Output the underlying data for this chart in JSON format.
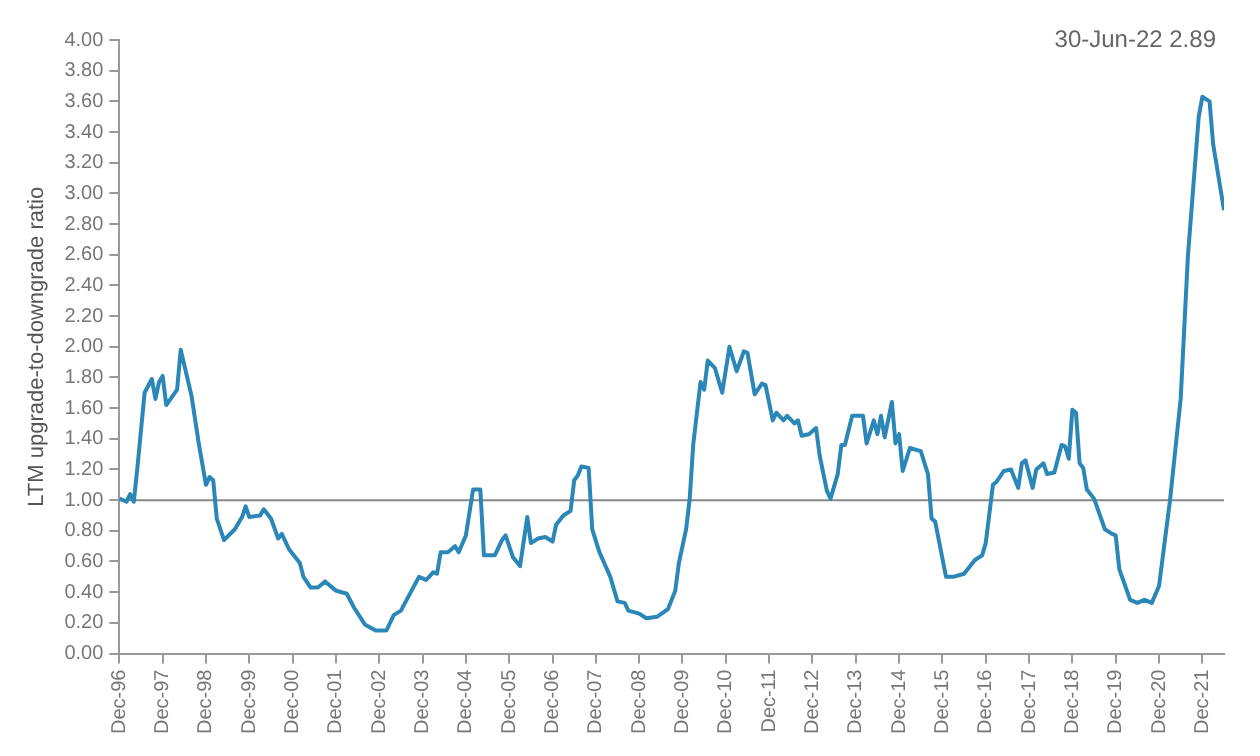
{
  "chart_data": {
    "type": "line",
    "ylabel": "LTM upgrade-to-downgrade ratio",
    "annotations": [
      "30-Jun-22 2.89"
    ],
    "x": [
      "1996-12",
      "1997-02",
      "1997-03",
      "1997-04",
      "1997-05",
      "1997-07",
      "1997-09",
      "1997-10",
      "1997-11",
      "1997-12",
      "1998-01",
      "1998-04",
      "1998-05",
      "1998-08",
      "1998-10",
      "1998-12",
      "1999-01",
      "1999-02",
      "1999-03",
      "1999-05",
      "1999-08",
      "1999-10",
      "1999-11",
      "1999-12",
      "2000-03",
      "2000-04",
      "2000-06",
      "2000-08",
      "2000-09",
      "2000-11",
      "2001-02",
      "2001-03",
      "2001-05",
      "2001-07",
      "2001-09",
      "2001-12",
      "2002-03",
      "2002-05",
      "2002-08",
      "2002-11",
      "2003-02",
      "2003-04",
      "2003-06",
      "2003-11",
      "2004-01",
      "2004-03",
      "2004-04",
      "2004-05",
      "2004-07",
      "2004-09",
      "2004-10",
      "2004-12",
      "2005-02",
      "2005-04",
      "2005-05",
      "2005-08",
      "2005-10",
      "2005-11",
      "2006-01",
      "2006-03",
      "2006-05",
      "2006-06",
      "2006-08",
      "2006-10",
      "2006-12",
      "2007-01",
      "2007-03",
      "2007-05",
      "2007-06",
      "2007-07",
      "2007-08",
      "2007-10",
      "2007-11",
      "2008-01",
      "2008-04",
      "2008-06",
      "2008-08",
      "2008-09",
      "2008-12",
      "2009-02",
      "2009-05",
      "2009-08",
      "2009-10",
      "2009-11",
      "2010-01",
      "2010-02",
      "2010-03",
      "2010-04",
      "2010-05",
      "2010-06",
      "2010-07",
      "2010-09",
      "2010-11",
      "2011-01",
      "2011-03",
      "2011-05",
      "2011-06",
      "2011-08",
      "2011-10",
      "2011-11",
      "2012-01",
      "2012-02",
      "2012-04",
      "2012-05",
      "2012-07",
      "2012-08",
      "2012-09",
      "2012-11",
      "2013-01",
      "2013-02",
      "2013-04",
      "2013-05",
      "2013-07",
      "2013-08",
      "2013-09",
      "2013-11",
      "2014-02",
      "2014-03",
      "2014-05",
      "2014-06",
      "2014-07",
      "2014-08",
      "2014-10",
      "2014-11",
      "2014-12",
      "2015-01",
      "2015-03",
      "2015-06",
      "2015-08",
      "2015-09",
      "2015-10",
      "2016-01",
      "2016-03",
      "2016-06",
      "2016-09",
      "2016-11",
      "2016-12",
      "2017-02",
      "2017-03",
      "2017-05",
      "2017-07",
      "2017-09",
      "2017-10",
      "2017-11",
      "2018-01",
      "2018-02",
      "2018-04",
      "2018-05",
      "2018-07",
      "2018-09",
      "2018-10",
      "2018-11",
      "2018-12",
      "2019-01",
      "2019-02",
      "2019-03",
      "2019-04",
      "2019-06",
      "2019-09",
      "2019-11",
      "2019-12",
      "2020-01",
      "2020-04",
      "2020-06",
      "2020-08",
      "2020-10",
      "2020-12",
      "2021-03",
      "2021-06",
      "2021-08",
      "2021-11",
      "2021-12",
      "2022-02",
      "2022-03",
      "2022-06"
    ],
    "series": [
      {
        "color": "#2a87b8",
        "values": [
          1.01,
          0.99,
          1.04,
          0.99,
          1.21,
          1.7,
          1.79,
          1.66,
          1.77,
          1.81,
          1.62,
          1.72,
          1.98,
          1.68,
          1.37,
          1.1,
          1.15,
          1.13,
          0.88,
          0.74,
          0.81,
          0.89,
          0.96,
          0.89,
          0.9,
          0.94,
          0.88,
          0.75,
          0.78,
          0.68,
          0.59,
          0.5,
          0.43,
          0.43,
          0.47,
          0.41,
          0.39,
          0.3,
          0.19,
          0.15,
          0.15,
          0.25,
          0.28,
          0.5,
          0.48,
          0.53,
          0.52,
          0.66,
          0.66,
          0.7,
          0.66,
          0.77,
          1.07,
          1.07,
          0.64,
          0.64,
          0.74,
          0.77,
          0.63,
          0.57,
          0.89,
          0.72,
          0.75,
          0.76,
          0.73,
          0.84,
          0.9,
          0.93,
          1.13,
          1.16,
          1.22,
          1.21,
          0.81,
          0.66,
          0.5,
          0.34,
          0.33,
          0.28,
          0.26,
          0.23,
          0.24,
          0.29,
          0.41,
          0.59,
          0.81,
          1.01,
          1.37,
          1.57,
          1.77,
          1.72,
          1.91,
          1.86,
          1.7,
          2.0,
          1.84,
          1.97,
          1.96,
          1.69,
          1.76,
          1.75,
          1.52,
          1.57,
          1.52,
          1.55,
          1.5,
          1.52,
          1.42,
          1.43,
          1.47,
          1.29,
          1.06,
          1.01,
          1.17,
          1.36,
          1.36,
          1.55,
          1.55,
          1.37,
          1.52,
          1.43,
          1.55,
          1.41,
          1.64,
          1.37,
          1.43,
          1.19,
          1.34,
          1.32,
          1.17,
          0.88,
          0.86,
          0.5,
          0.5,
          0.52,
          0.61,
          0.64,
          0.72,
          1.1,
          1.12,
          1.19,
          1.2,
          1.08,
          1.24,
          1.26,
          1.08,
          1.2,
          1.24,
          1.17,
          1.18,
          1.36,
          1.35,
          1.27,
          1.59,
          1.57,
          1.24,
          1.21,
          1.07,
          1.01,
          0.81,
          0.78,
          0.77,
          0.55,
          0.35,
          0.33,
          0.35,
          0.33,
          0.44,
          0.99,
          1.66,
          2.59,
          3.5,
          3.63,
          3.6,
          3.32,
          2.89
        ]
      }
    ],
    "xlim": [
      "1996-12",
      "2022-06"
    ],
    "xticks": [
      {
        "value": "1996-12",
        "label": "Dec-96"
      },
      {
        "value": "1997-12",
        "label": "Dec-97"
      },
      {
        "value": "1998-12",
        "label": "Dec-98"
      },
      {
        "value": "1999-12",
        "label": "Dec-99"
      },
      {
        "value": "2000-12",
        "label": "Dec-00"
      },
      {
        "value": "2001-12",
        "label": "Dec-01"
      },
      {
        "value": "2002-12",
        "label": "Dec-02"
      },
      {
        "value": "2003-12",
        "label": "Dec-03"
      },
      {
        "value": "2004-12",
        "label": "Dec-04"
      },
      {
        "value": "2005-12",
        "label": "Dec-05"
      },
      {
        "value": "2006-12",
        "label": "Dec-06"
      },
      {
        "value": "2007-12",
        "label": "Dec-07"
      },
      {
        "value": "2008-12",
        "label": "Dec-08"
      },
      {
        "value": "2009-12",
        "label": "Dec-09"
      },
      {
        "value": "2010-12",
        "label": "Dec-10"
      },
      {
        "value": "2011-12",
        "label": "Dec-11"
      },
      {
        "value": "2012-12",
        "label": "Dec-12"
      },
      {
        "value": "2013-12",
        "label": "Dec-13"
      },
      {
        "value": "2014-12",
        "label": "Dec-14"
      },
      {
        "value": "2015-12",
        "label": "Dec-15"
      },
      {
        "value": "2016-12",
        "label": "Dec-16"
      },
      {
        "value": "2017-12",
        "label": "Dec-17"
      },
      {
        "value": "2018-12",
        "label": "Dec-18"
      },
      {
        "value": "2019-12",
        "label": "Dec-19"
      },
      {
        "value": "2020-12",
        "label": "Dec-20"
      },
      {
        "value": "2021-12",
        "label": "Dec-21"
      }
    ],
    "ylim": [
      0,
      4
    ],
    "yticks": [
      {
        "value": 0,
        "label": "0.00"
      },
      {
        "value": 0.2,
        "label": "0.20"
      },
      {
        "value": 0.4,
        "label": "0.40"
      },
      {
        "value": 0.6,
        "label": "0.60"
      },
      {
        "value": 0.8,
        "label": "0.80"
      },
      {
        "value": 1,
        "label": "1.00"
      },
      {
        "value": 1.2,
        "label": "1.20"
      },
      {
        "value": 1.4,
        "label": "1.40"
      },
      {
        "value": 1.6,
        "label": "1.60"
      },
      {
        "value": 1.8,
        "label": "1.80"
      },
      {
        "value": 2,
        "label": "2.00"
      },
      {
        "value": 2.2,
        "label": "2.20"
      },
      {
        "value": 2.4,
        "label": "2.40"
      },
      {
        "value": 2.6,
        "label": "2.60"
      },
      {
        "value": 2.8,
        "label": "2.80"
      },
      {
        "value": 3,
        "label": "3.00"
      },
      {
        "value": 3.2,
        "label": "3.20"
      },
      {
        "value": 3.4,
        "label": "3.40"
      },
      {
        "value": 3.6,
        "label": "3.60"
      },
      {
        "value": 3.8,
        "label": "3.80"
      },
      {
        "value": 4,
        "label": "4.00"
      }
    ],
    "ref_lines": [
      {
        "axis": "y",
        "value": 1,
        "color": "#888888"
      }
    ],
    "grid": false,
    "legend": false,
    "marker": "none",
    "line_style": "solid"
  }
}
